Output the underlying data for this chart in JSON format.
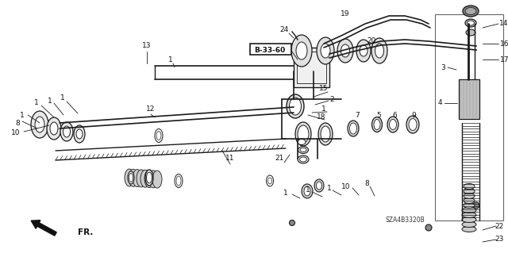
{
  "bg_color": "#ffffff",
  "line_color": "#1a1a1a",
  "text_color": "#111111",
  "label_B3360": "B-33-60",
  "label_FR": "FR.",
  "label_SZA": "SZA4B3320B",
  "fig_w": 6.4,
  "fig_h": 3.19,
  "dpi": 100
}
